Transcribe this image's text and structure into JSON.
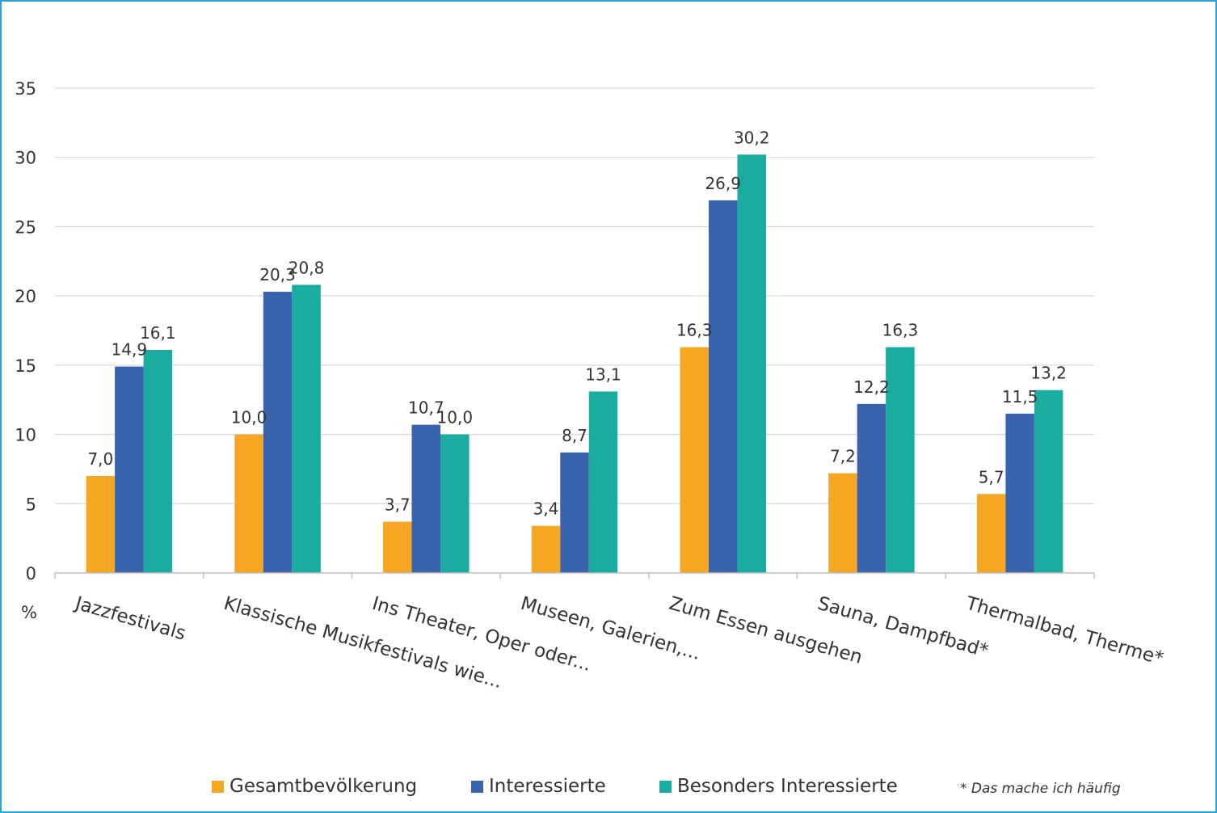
{
  "chart_data": {
    "type": "bar",
    "categories": [
      "Jazzfestivals",
      "Klassische Musikfestivals wie...",
      "Ins Theater, Oper oder...",
      "Museen, Galerien,...",
      "Zum Essen ausgehen",
      "Sauna, Dampfbad*",
      "Thermalbad, Therme*"
    ],
    "series": [
      {
        "name": "Gesamtbevölkerung",
        "color": "#f5a623",
        "values": [
          7.0,
          10.0,
          3.7,
          3.4,
          16.3,
          7.2,
          5.7
        ],
        "labels": [
          "7,0",
          "10,0",
          "3,7",
          "3,4",
          "16,3",
          "7,2",
          "5,7"
        ]
      },
      {
        "name": "Interessierte",
        "color": "#3a63ad",
        "values": [
          14.9,
          20.3,
          10.7,
          8.7,
          26.9,
          12.2,
          11.5
        ],
        "labels": [
          "14,9",
          "20,3",
          "10,7",
          "8,7",
          "26,9",
          "12,2",
          "11,5"
        ]
      },
      {
        "name": "Besonders Interessierte",
        "color": "#1aaca0",
        "values": [
          16.1,
          20.8,
          10.0,
          13.1,
          30.2,
          16.3,
          13.2
        ],
        "labels": [
          "16,1",
          "20,8",
          "10,0",
          "13,1",
          "30,2",
          "16,3",
          "13,2"
        ]
      }
    ],
    "ylabel": "%",
    "ylim": [
      0,
      35
    ],
    "yticks": [
      "0",
      "5",
      "10",
      "15",
      "20",
      "25",
      "30",
      "35"
    ],
    "grid": true,
    "legend_position": "bottom",
    "note": "* Das mache ich häufig"
  }
}
